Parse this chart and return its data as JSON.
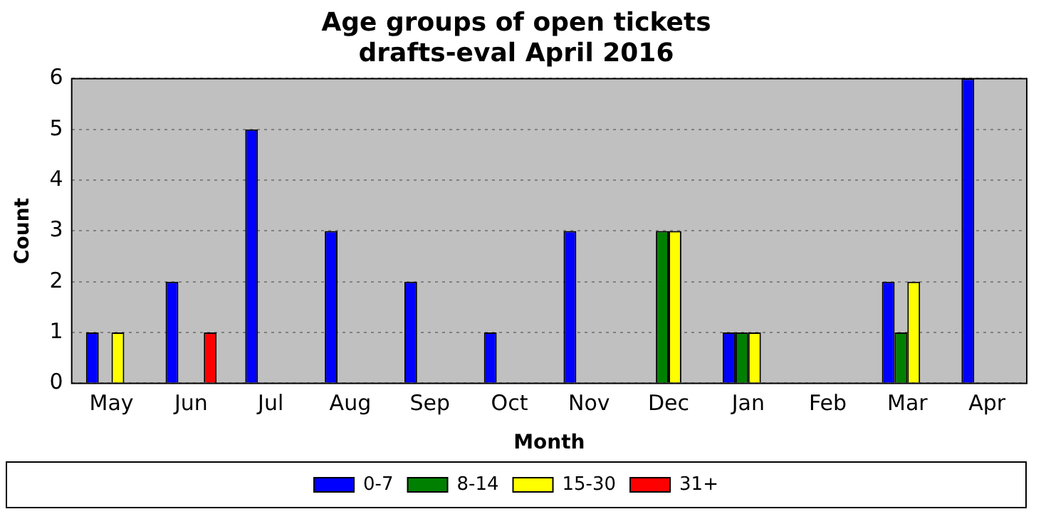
{
  "chart_data": {
    "type": "bar",
    "title": "Age groups of open tickets\ndrafts-eval April 2016",
    "xlabel": "Month",
    "ylabel": "Count",
    "categories": [
      "May",
      "Jun",
      "Jul",
      "Aug",
      "Sep",
      "Oct",
      "Nov",
      "Dec",
      "Jan",
      "Feb",
      "Mar",
      "Apr"
    ],
    "series": [
      {
        "name": "0-7",
        "color": "#0000ff",
        "values": [
          1,
          2,
          5,
          3,
          2,
          1,
          3,
          0,
          1,
          0,
          2,
          6
        ]
      },
      {
        "name": "8-14",
        "color": "#008000",
        "values": [
          0,
          0,
          0,
          0,
          0,
          0,
          0,
          3,
          1,
          0,
          1,
          0
        ]
      },
      {
        "name": "15-30",
        "color": "#ffff00",
        "values": [
          1,
          0,
          0,
          0,
          0,
          0,
          0,
          3,
          1,
          0,
          2,
          0
        ]
      },
      {
        "name": "31+",
        "color": "#ff0000",
        "values": [
          0,
          1,
          0,
          0,
          0,
          0,
          0,
          0,
          0,
          0,
          0,
          0
        ]
      }
    ],
    "ylim": [
      0,
      6
    ],
    "yticks": [
      0,
      1,
      2,
      3,
      4,
      5,
      6
    ],
    "grid": "y",
    "legend": "bottom"
  }
}
